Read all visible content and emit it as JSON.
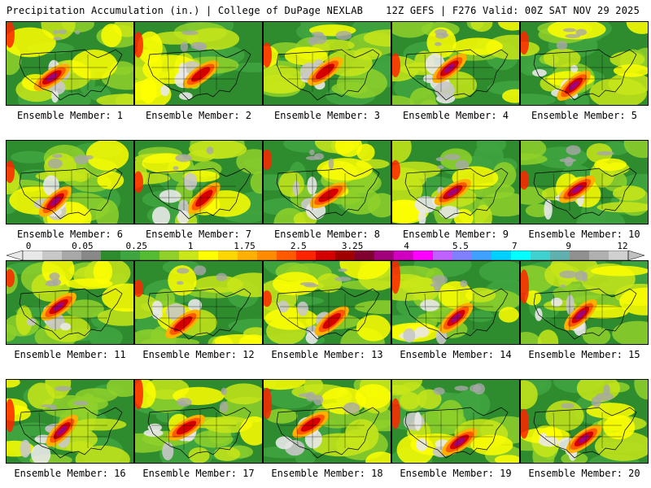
{
  "header": {
    "title": "Precipitation Accumulation (in.) | College of DuPage NEXLAB",
    "run_info": "12Z GEFS | F276 Valid: 00Z SAT NOV 29 2025"
  },
  "panels": [
    {
      "label": "Ensemble Member: 1"
    },
    {
      "label": "Ensemble Member: 2"
    },
    {
      "label": "Ensemble Member: 3"
    },
    {
      "label": "Ensemble Member: 4"
    },
    {
      "label": "Ensemble Member: 5"
    },
    {
      "label": "Ensemble Member: 6"
    },
    {
      "label": "Ensemble Member: 7"
    },
    {
      "label": "Ensemble Member: 8"
    },
    {
      "label": "Ensemble Member: 9"
    },
    {
      "label": "Ensemble Member: 10"
    },
    {
      "label": "Ensemble Member: 11"
    },
    {
      "label": "Ensemble Member: 12"
    },
    {
      "label": "Ensemble Member: 13"
    },
    {
      "label": "Ensemble Member: 14"
    },
    {
      "label": "Ensemble Member: 15"
    },
    {
      "label": "Ensemble Member: 16"
    },
    {
      "label": "Ensemble Member: 17"
    },
    {
      "label": "Ensemble Member: 18"
    },
    {
      "label": "Ensemble Member: 19"
    },
    {
      "label": "Ensemble Member: 20"
    }
  ],
  "colorbar": {
    "tick_labels": [
      "0",
      "0.05",
      "0.25",
      "1",
      "1.75",
      "2.5",
      "3.25",
      "4",
      "5.5",
      "7",
      "9",
      "12"
    ],
    "colors": [
      "#e8e8e8",
      "#c8c8c8",
      "#a8a8a8",
      "#888888",
      "#2e8b2e",
      "#3fa53f",
      "#55bb33",
      "#8fd12a",
      "#c8e619",
      "#ffff00",
      "#ffd700",
      "#ffb000",
      "#ff8c00",
      "#ff5a00",
      "#ff2400",
      "#d40000",
      "#a00000",
      "#800030",
      "#a0007a",
      "#d000c0",
      "#ff00ff",
      "#c060ff",
      "#8080ff",
      "#40a0ff",
      "#00d0ff",
      "#00ffff",
      "#40d0d0",
      "#60b0b0",
      "#909090",
      "#b0b0b0",
      "#d0d0d0"
    ]
  }
}
